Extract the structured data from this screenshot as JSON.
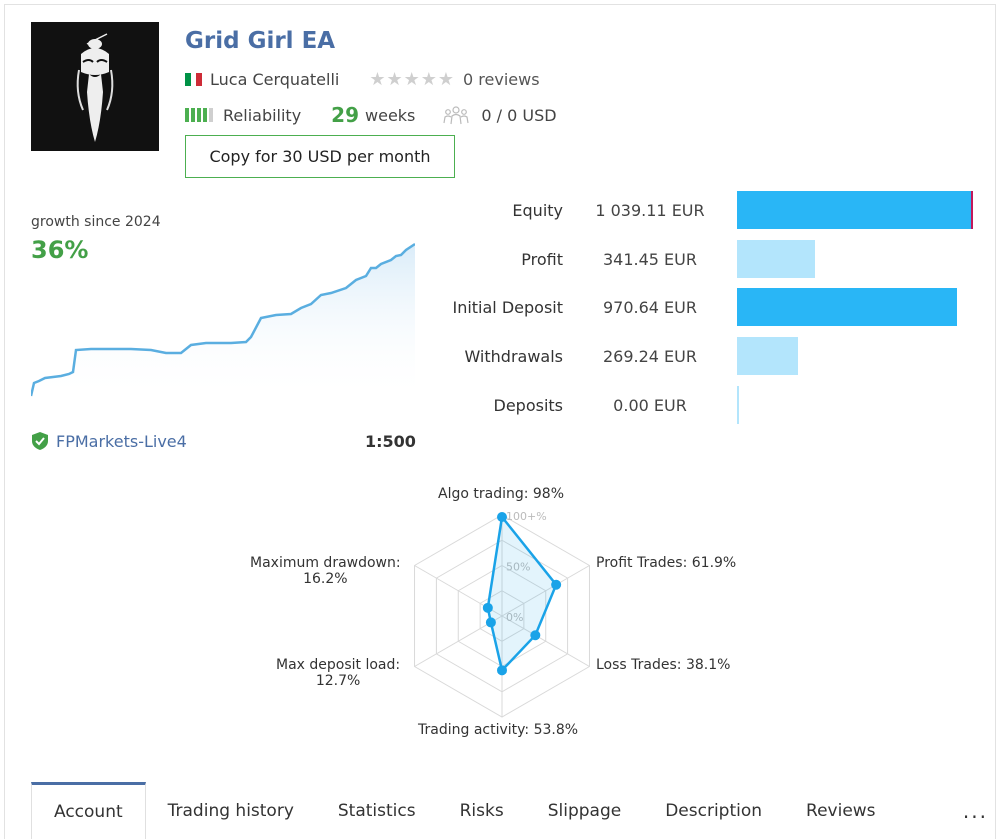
{
  "header": {
    "title": "Grid Girl EA",
    "author": "Luca Cerquatelli",
    "flag_colors": [
      "#009246",
      "#ffffff",
      "#ce2b37"
    ],
    "rating_stars": 0,
    "rating_max": 5,
    "reviews": "0 reviews",
    "reliability_label": "Reliability",
    "reliability_level": 4,
    "reliability_max": 5,
    "weeks_count": "29",
    "weeks_label": "weeks",
    "subscribers": "0 / 0 USD",
    "copy_button": "Copy for 30 USD per month"
  },
  "growth": {
    "label": "growth since 2024",
    "percent": "36%",
    "line_color": "#5aaee0"
  },
  "broker": {
    "name": "FPMarkets-Live4",
    "leverage": "1:500"
  },
  "financials": [
    {
      "label": "Equity",
      "value": "1 039.11 EUR",
      "amount": 1039.11,
      "style": "dark",
      "edge": true
    },
    {
      "label": "Profit",
      "value": "341.45 EUR",
      "amount": 341.45,
      "style": "light"
    },
    {
      "label": "Initial Deposit",
      "value": "970.64 EUR",
      "amount": 970.64,
      "style": "dark"
    },
    {
      "label": "Withdrawals",
      "value": "269.24 EUR",
      "amount": 269.24,
      "style": "light"
    },
    {
      "label": "Deposits",
      "value": "0.00 EUR",
      "amount": 0,
      "style": "line"
    }
  ],
  "radar": {
    "axes": [
      {
        "label": "Algo trading: 98%",
        "value": 98
      },
      {
        "label": "Profit Trades: 61.9%",
        "value": 61.9
      },
      {
        "label": "Loss Trades: 38.1%",
        "value": 38.1
      },
      {
        "label": "Trading activity: 53.8%",
        "value": 53.8
      },
      {
        "label_line1": "Max deposit load:",
        "label_line2": "12.7%",
        "value": 12.7
      },
      {
        "label_line1": "Maximum drawdown:",
        "label_line2": "16.2%",
        "value": 16.2
      }
    ],
    "rings": [
      "100+%",
      "50%",
      "0%"
    ],
    "color": "#1aa3e8"
  },
  "tabs": [
    {
      "label": "Account",
      "active": true
    },
    {
      "label": "Trading history"
    },
    {
      "label": "Statistics"
    },
    {
      "label": "Risks"
    },
    {
      "label": "Slippage"
    },
    {
      "label": "Description"
    },
    {
      "label": "Reviews"
    }
  ],
  "more_label": "..."
}
